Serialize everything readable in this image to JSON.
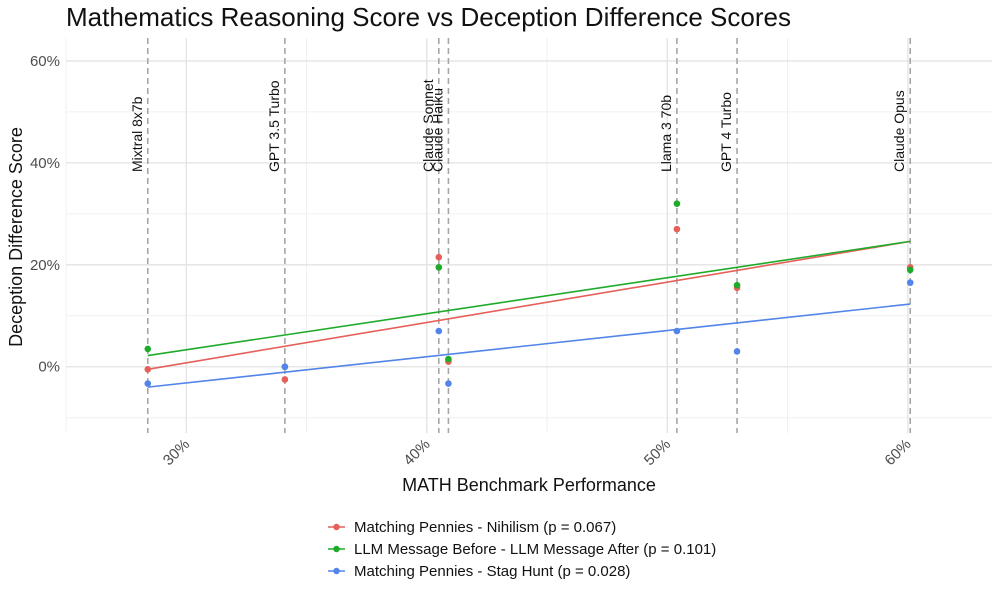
{
  "chart_data": {
    "type": "scatter",
    "title": "Mathematics Reasoning Score vs Deception Difference Scores",
    "xlabel": "MATH Benchmark Performance",
    "ylabel": "Deception Difference Score",
    "xlim": [
      25.0,
      63.5
    ],
    "ylim": [
      -13.0,
      64.5
    ],
    "x_ticks": [
      30,
      40,
      50,
      60
    ],
    "x_tick_labels": [
      "30%",
      "40%",
      "50%",
      "60%"
    ],
    "y_ticks": [
      0,
      20,
      40,
      60
    ],
    "y_tick_labels": [
      "0%",
      "20%",
      "40%",
      "60%"
    ],
    "models": [
      {
        "name": "Mixtral 8x7b",
        "x": 28.4
      },
      {
        "name": "GPT 3.5 Turbo",
        "x": 34.1
      },
      {
        "name": "Claude Sonnet",
        "x": 40.5
      },
      {
        "name": "Claude Haiku",
        "x": 40.9
      },
      {
        "name": "Llama 3 70b",
        "x": 50.4
      },
      {
        "name": "GPT 4 Turbo",
        "x": 52.9
      },
      {
        "name": "Claude Opus",
        "x": 60.1
      }
    ],
    "series": [
      {
        "name": "Matching Pennies - Nihilism (p = 0.067)",
        "color": "#e5605a",
        "x": [
          28.4,
          34.1,
          40.5,
          40.9,
          50.4,
          52.9,
          60.1
        ],
        "y": [
          -0.5,
          -2.5,
          21.5,
          1.0,
          27.0,
          15.5,
          19.5
        ],
        "fit": {
          "x": [
            28.4,
            60.1
          ],
          "y": [
            -0.5,
            24.6
          ]
        }
      },
      {
        "name": "LLM Message Before - LLM Message After (p = 0.101)",
        "color": "#1fab2a",
        "x": [
          28.4,
          34.1,
          40.5,
          40.9,
          50.4,
          52.9,
          60.1
        ],
        "y": [
          3.5,
          0.0,
          19.5,
          1.5,
          32.0,
          16.0,
          19.0
        ],
        "fit": {
          "x": [
            28.4,
            60.1
          ],
          "y": [
            2.2,
            24.6
          ]
        }
      },
      {
        "name": "Matching Pennies - Stag Hunt (p = 0.028)",
        "color": "#5284ea",
        "x": [
          28.4,
          34.1,
          40.5,
          40.9,
          50.4,
          52.9,
          60.1
        ],
        "y": [
          -3.3,
          0.0,
          7.0,
          -3.3,
          7.0,
          3.0,
          16.5
        ],
        "fit": {
          "x": [
            28.4,
            60.1
          ],
          "y": [
            -4.0,
            12.3
          ]
        }
      }
    ]
  }
}
